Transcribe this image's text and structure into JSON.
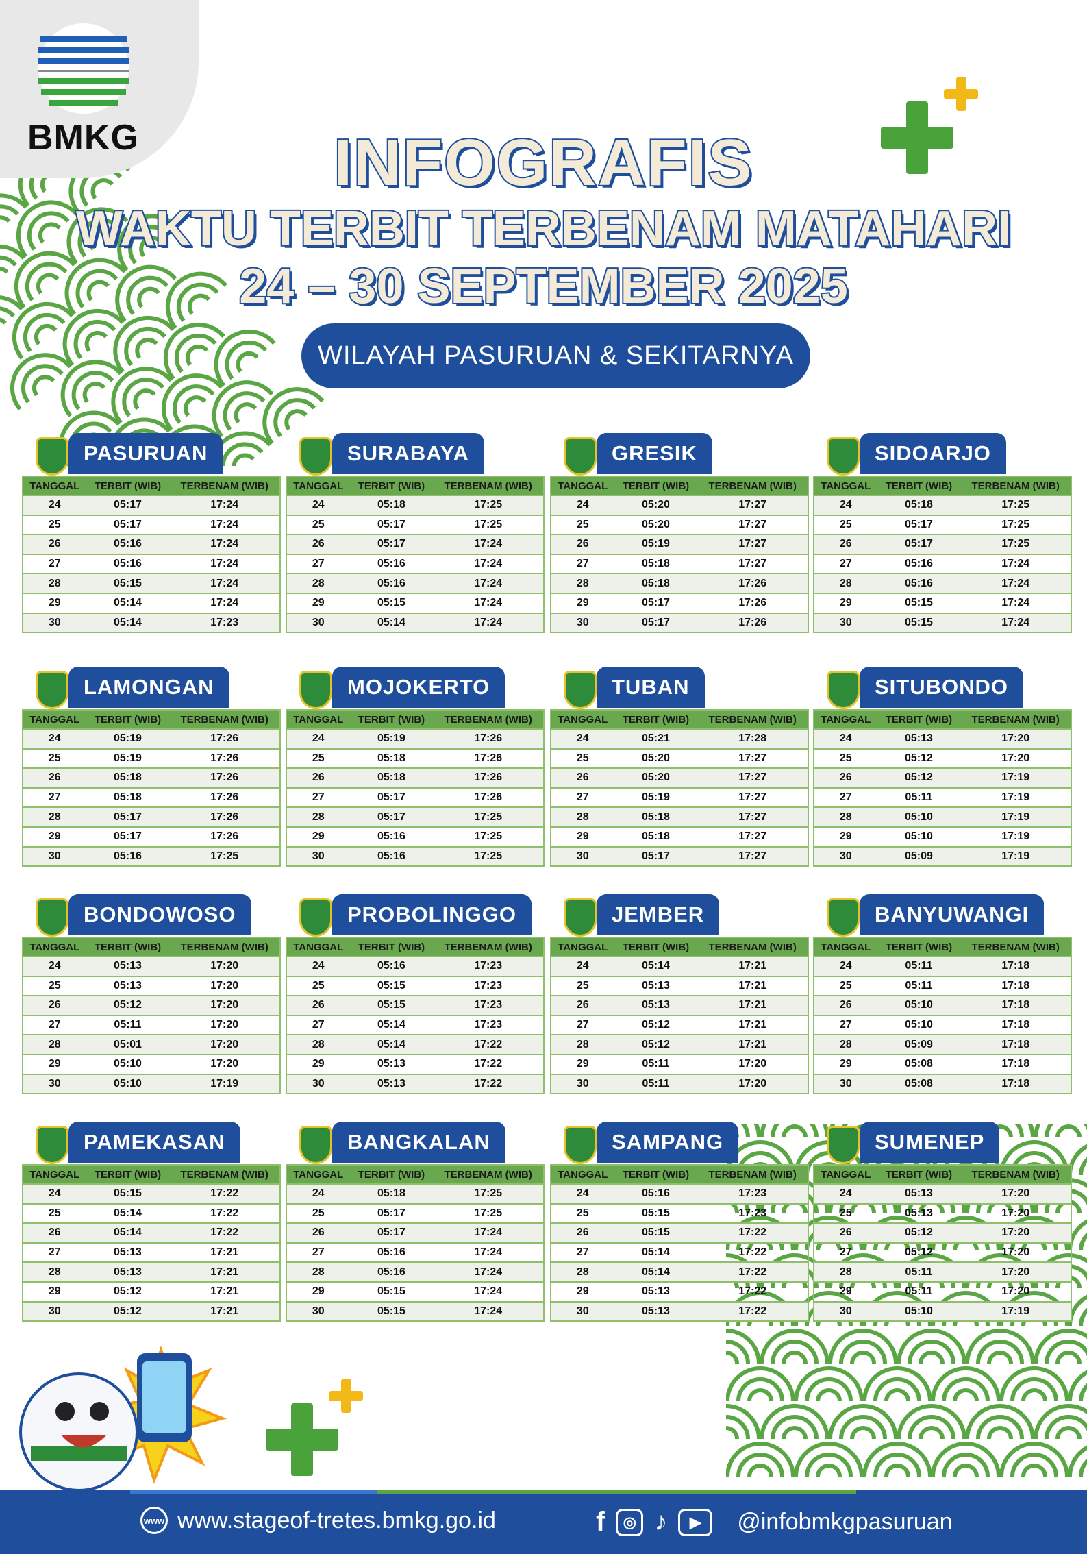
{
  "brand": {
    "logo_text": "BMKG",
    "blue": "#1f4e9c",
    "green": "#6aa84f"
  },
  "header": {
    "title": "INFOGRAFIS",
    "subtitle": "WAKTU TERBIT TERBENAM MATAHARI",
    "date_range": "24 – 30 SEPTEMBER 2025",
    "region": "WILAYAH PASURUAN & SEKITARNYA"
  },
  "columns": [
    "TANGGAL",
    "TERBIT (WIB)",
    "TERBENAM (WIB)"
  ],
  "regions": [
    {
      "name": "PASURUAN",
      "rows": [
        [
          "24",
          "05:17",
          "17:24"
        ],
        [
          "25",
          "05:17",
          "17:24"
        ],
        [
          "26",
          "05:16",
          "17:24"
        ],
        [
          "27",
          "05:16",
          "17:24"
        ],
        [
          "28",
          "05:15",
          "17:24"
        ],
        [
          "29",
          "05:14",
          "17:24"
        ],
        [
          "30",
          "05:14",
          "17:23"
        ]
      ]
    },
    {
      "name": "SURABAYA",
      "rows": [
        [
          "24",
          "05:18",
          "17:25"
        ],
        [
          "25",
          "05:17",
          "17:25"
        ],
        [
          "26",
          "05:17",
          "17:24"
        ],
        [
          "27",
          "05:16",
          "17:24"
        ],
        [
          "28",
          "05:16",
          "17:24"
        ],
        [
          "29",
          "05:15",
          "17:24"
        ],
        [
          "30",
          "05:14",
          "17:24"
        ]
      ]
    },
    {
      "name": "GRESIK",
      "rows": [
        [
          "24",
          "05:20",
          "17:27"
        ],
        [
          "25",
          "05:20",
          "17:27"
        ],
        [
          "26",
          "05:19",
          "17:27"
        ],
        [
          "27",
          "05:18",
          "17:27"
        ],
        [
          "28",
          "05:18",
          "17:26"
        ],
        [
          "29",
          "05:17",
          "17:26"
        ],
        [
          "30",
          "05:17",
          "17:26"
        ]
      ]
    },
    {
      "name": "SIDOARJO",
      "rows": [
        [
          "24",
          "05:18",
          "17:25"
        ],
        [
          "25",
          "05:17",
          "17:25"
        ],
        [
          "26",
          "05:17",
          "17:25"
        ],
        [
          "27",
          "05:16",
          "17:24"
        ],
        [
          "28",
          "05:16",
          "17:24"
        ],
        [
          "29",
          "05:15",
          "17:24"
        ],
        [
          "30",
          "05:15",
          "17:24"
        ]
      ]
    },
    {
      "name": "LAMONGAN",
      "rows": [
        [
          "24",
          "05:19",
          "17:26"
        ],
        [
          "25",
          "05:19",
          "17:26"
        ],
        [
          "26",
          "05:18",
          "17:26"
        ],
        [
          "27",
          "05:18",
          "17:26"
        ],
        [
          "28",
          "05:17",
          "17:26"
        ],
        [
          "29",
          "05:17",
          "17:26"
        ],
        [
          "30",
          "05:16",
          "17:25"
        ]
      ]
    },
    {
      "name": "MOJOKERTO",
      "rows": [
        [
          "24",
          "05:19",
          "17:26"
        ],
        [
          "25",
          "05:18",
          "17:26"
        ],
        [
          "26",
          "05:18",
          "17:26"
        ],
        [
          "27",
          "05:17",
          "17:26"
        ],
        [
          "28",
          "05:17",
          "17:25"
        ],
        [
          "29",
          "05:16",
          "17:25"
        ],
        [
          "30",
          "05:16",
          "17:25"
        ]
      ]
    },
    {
      "name": "TUBAN",
      "rows": [
        [
          "24",
          "05:21",
          "17:28"
        ],
        [
          "25",
          "05:20",
          "17:27"
        ],
        [
          "26",
          "05:20",
          "17:27"
        ],
        [
          "27",
          "05:19",
          "17:27"
        ],
        [
          "28",
          "05:18",
          "17:27"
        ],
        [
          "29",
          "05:18",
          "17:27"
        ],
        [
          "30",
          "05:17",
          "17:27"
        ]
      ]
    },
    {
      "name": "SITUBONDO",
      "rows": [
        [
          "24",
          "05:13",
          "17:20"
        ],
        [
          "25",
          "05:12",
          "17:20"
        ],
        [
          "26",
          "05:12",
          "17:19"
        ],
        [
          "27",
          "05:11",
          "17:19"
        ],
        [
          "28",
          "05:10",
          "17:19"
        ],
        [
          "29",
          "05:10",
          "17:19"
        ],
        [
          "30",
          "05:09",
          "17:19"
        ]
      ]
    },
    {
      "name": "BONDOWOSO",
      "rows": [
        [
          "24",
          "05:13",
          "17:20"
        ],
        [
          "25",
          "05:13",
          "17:20"
        ],
        [
          "26",
          "05:12",
          "17:20"
        ],
        [
          "27",
          "05:11",
          "17:20"
        ],
        [
          "28",
          "05:01",
          "17:20"
        ],
        [
          "29",
          "05:10",
          "17:20"
        ],
        [
          "30",
          "05:10",
          "17:19"
        ]
      ]
    },
    {
      "name": "PROBOLINGGO",
      "rows": [
        [
          "24",
          "05:16",
          "17:23"
        ],
        [
          "25",
          "05:15",
          "17:23"
        ],
        [
          "26",
          "05:15",
          "17:23"
        ],
        [
          "27",
          "05:14",
          "17:23"
        ],
        [
          "28",
          "05:14",
          "17:22"
        ],
        [
          "29",
          "05:13",
          "17:22"
        ],
        [
          "30",
          "05:13",
          "17:22"
        ]
      ]
    },
    {
      "name": "JEMBER",
      "rows": [
        [
          "24",
          "05:14",
          "17:21"
        ],
        [
          "25",
          "05:13",
          "17:21"
        ],
        [
          "26",
          "05:13",
          "17:21"
        ],
        [
          "27",
          "05:12",
          "17:21"
        ],
        [
          "28",
          "05:12",
          "17:21"
        ],
        [
          "29",
          "05:11",
          "17:20"
        ],
        [
          "30",
          "05:11",
          "17:20"
        ]
      ]
    },
    {
      "name": "BANYUWANGI",
      "rows": [
        [
          "24",
          "05:11",
          "17:18"
        ],
        [
          "25",
          "05:11",
          "17:18"
        ],
        [
          "26",
          "05:10",
          "17:18"
        ],
        [
          "27",
          "05:10",
          "17:18"
        ],
        [
          "28",
          "05:09",
          "17:18"
        ],
        [
          "29",
          "05:08",
          "17:18"
        ],
        [
          "30",
          "05:08",
          "17:18"
        ]
      ]
    },
    {
      "name": "PAMEKASAN",
      "rows": [
        [
          "24",
          "05:15",
          "17:22"
        ],
        [
          "25",
          "05:14",
          "17:22"
        ],
        [
          "26",
          "05:14",
          "17:22"
        ],
        [
          "27",
          "05:13",
          "17:21"
        ],
        [
          "28",
          "05:13",
          "17:21"
        ],
        [
          "29",
          "05:12",
          "17:21"
        ],
        [
          "30",
          "05:12",
          "17:21"
        ]
      ]
    },
    {
      "name": "BANGKALAN",
      "rows": [
        [
          "24",
          "05:18",
          "17:25"
        ],
        [
          "25",
          "05:17",
          "17:25"
        ],
        [
          "26",
          "05:17",
          "17:24"
        ],
        [
          "27",
          "05:16",
          "17:24"
        ],
        [
          "28",
          "05:16",
          "17:24"
        ],
        [
          "29",
          "05:15",
          "17:24"
        ],
        [
          "30",
          "05:15",
          "17:24"
        ]
      ]
    },
    {
      "name": "SAMPANG",
      "rows": [
        [
          "24",
          "05:16",
          "17:23"
        ],
        [
          "25",
          "05:15",
          "17:23"
        ],
        [
          "26",
          "05:15",
          "17:22"
        ],
        [
          "27",
          "05:14",
          "17:22"
        ],
        [
          "28",
          "05:14",
          "17:22"
        ],
        [
          "29",
          "05:13",
          "17:22"
        ],
        [
          "30",
          "05:13",
          "17:22"
        ]
      ]
    },
    {
      "name": "SUMENEP",
      "rows": [
        [
          "24",
          "05:13",
          "17:20"
        ],
        [
          "25",
          "05:13",
          "17:20"
        ],
        [
          "26",
          "05:12",
          "17:20"
        ],
        [
          "27",
          "05:12",
          "17:20"
        ],
        [
          "28",
          "05:11",
          "17:20"
        ],
        [
          "29",
          "05:11",
          "17:20"
        ],
        [
          "30",
          "05:10",
          "17:19"
        ]
      ]
    }
  ],
  "footer": {
    "website": "www.stageof-tretes.bmkg.go.id",
    "social_handle": "@infobmkgpasuruan",
    "icons": [
      "globe-icon",
      "facebook-icon",
      "instagram-icon",
      "tiktok-icon",
      "youtube-icon"
    ]
  }
}
